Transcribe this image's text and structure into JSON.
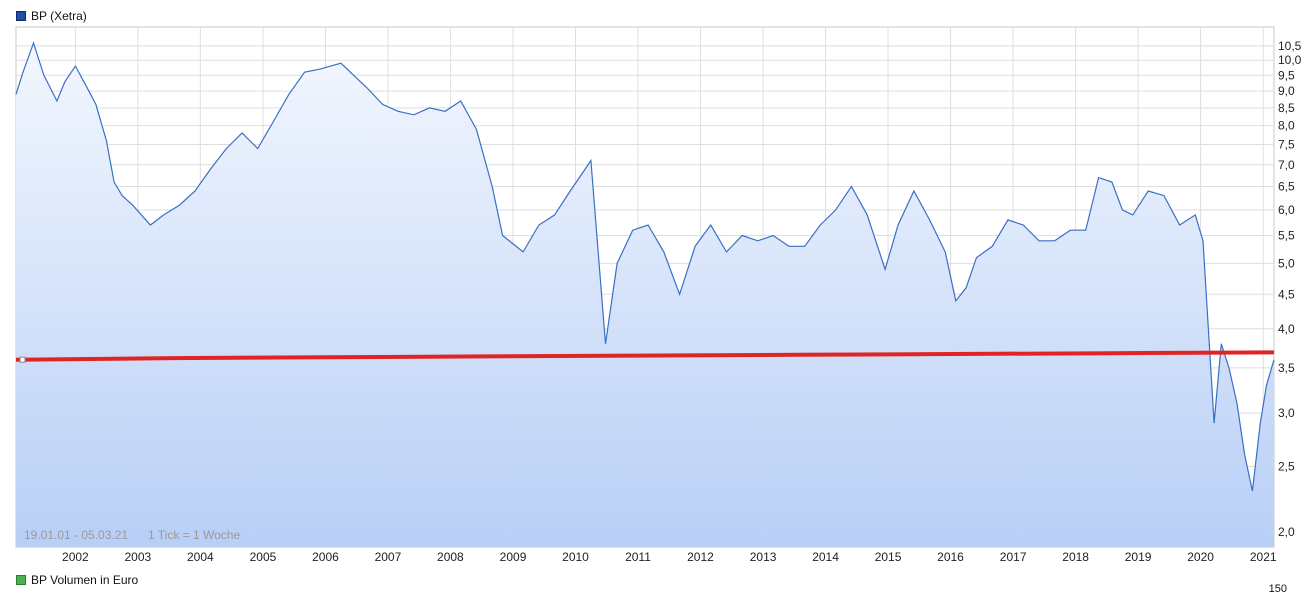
{
  "legend": {
    "price_series_label": "BP (Xetra)",
    "price_series_color": "#1f4fa8",
    "volume_series_label": "BP Volumen in Euro",
    "volume_series_color": "#4caf50"
  },
  "info": {
    "range_text": "19.01.01 - 05.03.21",
    "tick_text": "1 Tick = 1 Woche"
  },
  "volume_axis_top_label": "150",
  "chart_data": {
    "type": "line",
    "x_scale": "time",
    "y_scale": "log",
    "ylim": [
      1.9,
      11.2
    ],
    "xlim": [
      "2001-01-19",
      "2021-03-05"
    ],
    "x_tick_labels": [
      "2002",
      "2003",
      "2004",
      "2005",
      "2006",
      "2007",
      "2008",
      "2009",
      "2010",
      "2011",
      "2012",
      "2013",
      "2014",
      "2015",
      "2016",
      "2017",
      "2018",
      "2019",
      "2020",
      "2021"
    ],
    "y_tick_labels": [
      "10,5",
      "10,0",
      "9,5",
      "9,0",
      "8,5",
      "8,0",
      "7,5",
      "7,0",
      "6,5",
      "6,0",
      "5,5",
      "5,0",
      "4,5",
      "4,0",
      "3,5",
      "3,0",
      "2,5",
      "2,0"
    ],
    "y_tick_values": [
      10.5,
      10.0,
      9.5,
      9.0,
      8.5,
      8.0,
      7.5,
      7.0,
      6.5,
      6.0,
      5.5,
      5.0,
      4.5,
      4.0,
      3.5,
      3.0,
      2.5,
      2.0
    ],
    "grid": true,
    "line_color": "#3b6fc4",
    "area_gradient": [
      "#f2f6fe",
      "#b9d1f7"
    ],
    "reference_line_color": "#e02424",
    "series": [
      {
        "name": "BP (Xetra)",
        "x": [
          "2001-01-19",
          "2001-03-01",
          "2001-05-01",
          "2001-07-01",
          "2001-09-15",
          "2001-11-01",
          "2002-01-01",
          "2002-03-01",
          "2002-05-01",
          "2002-07-01",
          "2002-08-15",
          "2002-10-01",
          "2002-12-01",
          "2003-03-15",
          "2003-06-01",
          "2003-09-01",
          "2003-12-01",
          "2004-03-01",
          "2004-06-01",
          "2004-09-01",
          "2004-12-01",
          "2005-03-01",
          "2005-06-01",
          "2005-09-01",
          "2005-12-01",
          "2006-04-01",
          "2006-06-15",
          "2006-09-01",
          "2006-12-01",
          "2007-03-01",
          "2007-06-01",
          "2007-09-01",
          "2007-12-01",
          "2008-03-01",
          "2008-06-01",
          "2008-09-01",
          "2008-11-01",
          "2009-03-01",
          "2009-06-01",
          "2009-09-01",
          "2009-12-01",
          "2010-04-01",
          "2010-06-25",
          "2010-09-01",
          "2010-12-01",
          "2011-03-01",
          "2011-06-01",
          "2011-09-01",
          "2011-12-01",
          "2012-03-01",
          "2012-06-01",
          "2012-09-01",
          "2012-12-01",
          "2013-03-01",
          "2013-06-01",
          "2013-09-01",
          "2013-12-01",
          "2014-03-01",
          "2014-06-01",
          "2014-09-01",
          "2014-12-15",
          "2015-03-01",
          "2015-06-01",
          "2015-09-01",
          "2015-12-01",
          "2016-02-01",
          "2016-04-01",
          "2016-06-01",
          "2016-09-01",
          "2016-12-01",
          "2017-03-01",
          "2017-06-01",
          "2017-09-01",
          "2017-12-01",
          "2018-03-01",
          "2018-05-15",
          "2018-08-01",
          "2018-10-01",
          "2018-12-01",
          "2019-03-01",
          "2019-06-01",
          "2019-09-01",
          "2019-12-01",
          "2020-01-15",
          "2020-03-20",
          "2020-05-01",
          "2020-06-15",
          "2020-08-01",
          "2020-09-15",
          "2020-10-30",
          "2020-12-15",
          "2021-01-20",
          "2021-03-05"
        ],
        "values": [
          8.9,
          9.6,
          10.6,
          9.5,
          8.7,
          9.3,
          9.8,
          9.2,
          8.6,
          7.6,
          6.6,
          6.3,
          6.1,
          5.7,
          5.9,
          6.1,
          6.4,
          6.9,
          7.4,
          7.8,
          7.4,
          8.1,
          8.9,
          9.6,
          9.7,
          9.9,
          9.5,
          9.1,
          8.6,
          8.4,
          8.3,
          8.5,
          8.4,
          8.7,
          7.9,
          6.5,
          5.5,
          5.2,
          5.7,
          5.9,
          6.4,
          7.1,
          3.8,
          5.0,
          5.6,
          5.7,
          5.2,
          4.5,
          5.3,
          5.7,
          5.2,
          5.5,
          5.4,
          5.5,
          5.3,
          5.3,
          5.7,
          6.0,
          6.5,
          5.9,
          4.9,
          5.7,
          6.4,
          5.8,
          5.2,
          4.4,
          4.6,
          5.1,
          5.3,
          5.8,
          5.7,
          5.4,
          5.4,
          5.6,
          5.6,
          6.7,
          6.6,
          6.0,
          5.9,
          6.4,
          6.3,
          5.7,
          5.9,
          5.4,
          2.9,
          3.8,
          3.5,
          3.1,
          2.6,
          2.3,
          2.9,
          3.3,
          3.6
        ]
      }
    ],
    "reference_line": [
      {
        "x": "2001-01-19",
        "y": 3.6
      },
      {
        "x": "2003-08-01",
        "y": 3.62
      },
      {
        "x": "2008-08-01",
        "y": 3.64
      },
      {
        "x": "2013-08-01",
        "y": 3.66
      },
      {
        "x": "2018-08-01",
        "y": 3.68
      },
      {
        "x": "2021-03-05",
        "y": 3.69
      }
    ]
  }
}
